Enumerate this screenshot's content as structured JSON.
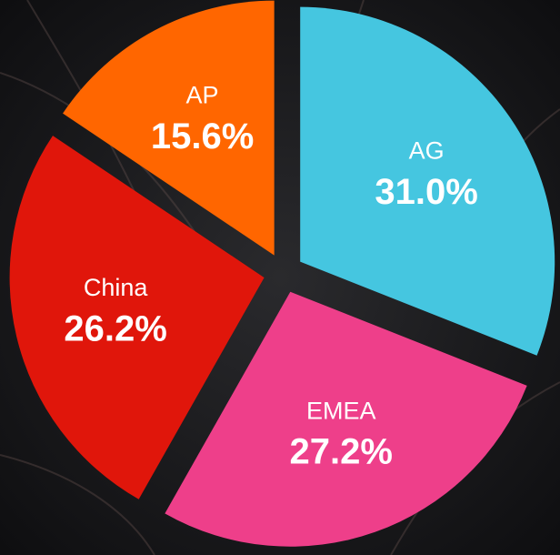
{
  "chart_data": {
    "type": "pie",
    "categories": [
      "AG",
      "EMEA",
      "China",
      "AP"
    ],
    "values": [
      31.0,
      27.2,
      26.2,
      15.6
    ],
    "value_labels": [
      "31.0%",
      "27.2%",
      "26.2%",
      "15.6%"
    ],
    "colors": [
      "#45c6e0",
      "#ee3f8a",
      "#e0160b",
      "#ff6600"
    ],
    "exploded": true
  }
}
